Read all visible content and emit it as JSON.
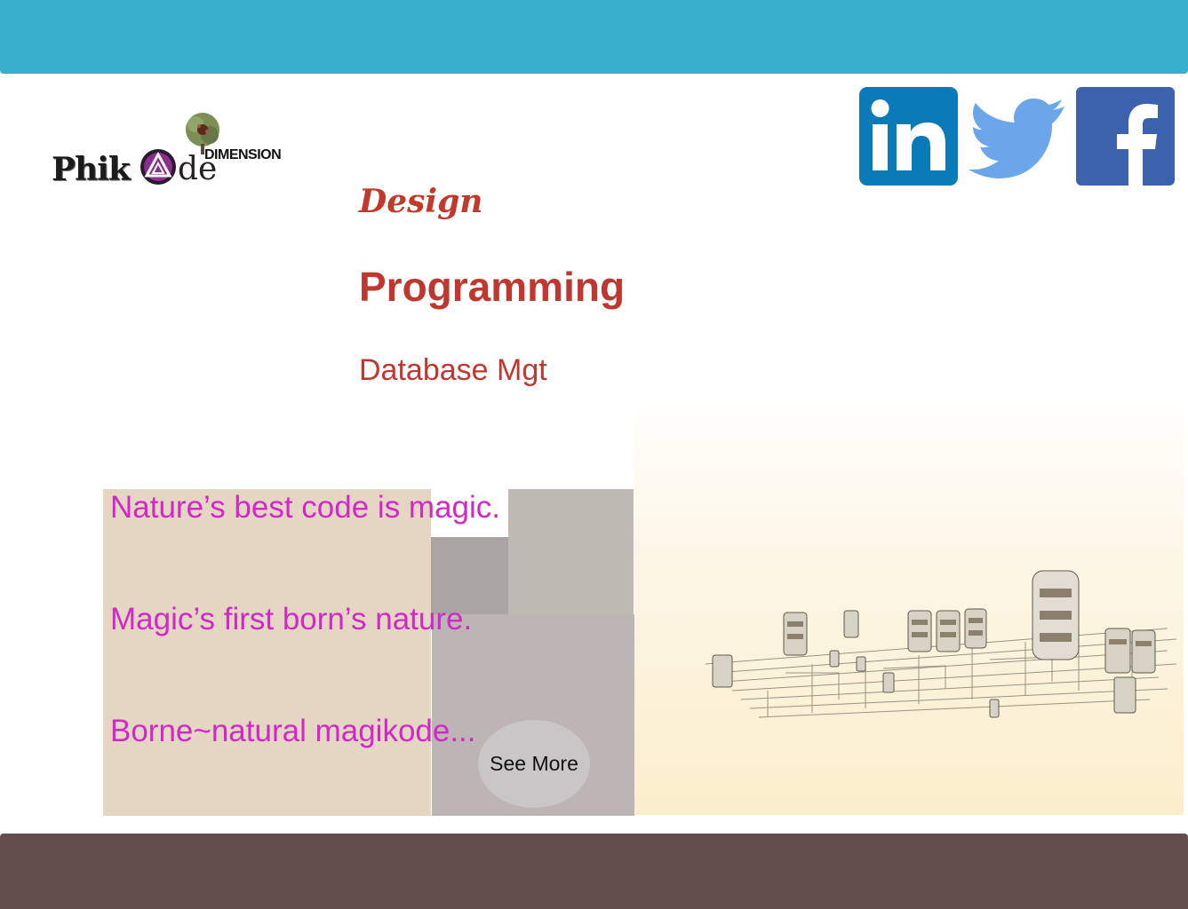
{
  "logo": {
    "wordmark": "Phik",
    "wordmark_suffix": "de",
    "tagline": "DIMENSION"
  },
  "social": {
    "linkedin_icon": "linkedin-icon",
    "twitter_icon": "twitter-icon",
    "facebook_icon": "facebook-icon",
    "colors": {
      "linkedin": "#0a7ab8",
      "twitter": "#6aa6e9",
      "facebook": "#3c62ae"
    }
  },
  "services": {
    "design": "Design",
    "programming": "Programming",
    "database": "Database Mgt"
  },
  "quotes": [
    "Nature’s best code is magic.",
    "Magic’s first born’s nature.",
    "Borne~natural magikode..."
  ],
  "cta": {
    "label": "See More"
  },
  "colors": {
    "header": "#3aafcc",
    "footer": "#624e4a",
    "service_text": "#c0372f",
    "quote_text": "#d228c6"
  }
}
